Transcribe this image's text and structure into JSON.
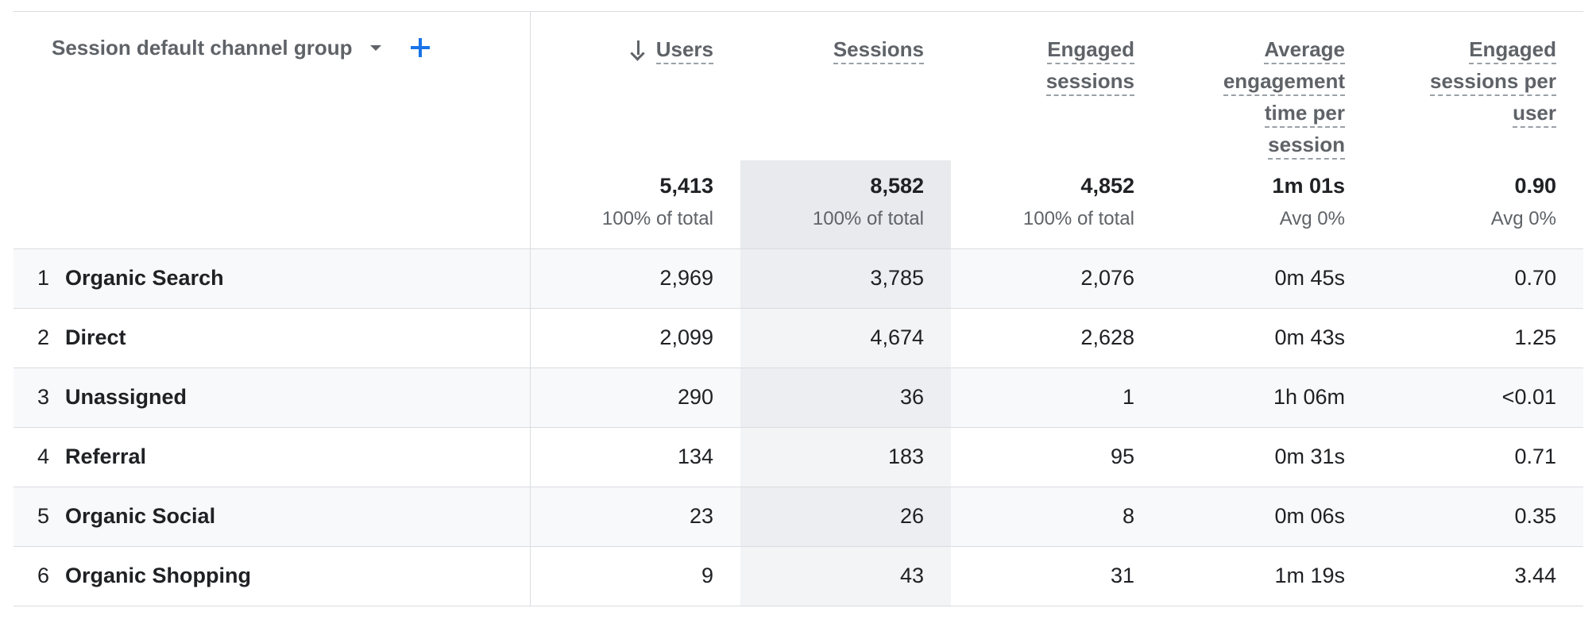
{
  "dimension": {
    "label": "Session default channel group"
  },
  "columns": [
    {
      "key": "users",
      "label": "Users",
      "sorted": true
    },
    {
      "key": "sessions",
      "label": "Sessions",
      "sorted": false
    },
    {
      "key": "engaged_sessions",
      "label": "Engaged sessions",
      "sorted": false
    },
    {
      "key": "avg_engagement_time",
      "label": "Average engagement time per session",
      "sorted": false
    },
    {
      "key": "engaged_sessions_per_user",
      "label": "Engaged sessions per user",
      "sorted": false
    }
  ],
  "header_lines": [
    [
      "Users"
    ],
    [
      "Sessions"
    ],
    [
      "Engaged",
      "sessions"
    ],
    [
      "Average",
      "engagement",
      "time per",
      "session"
    ],
    [
      "Engaged",
      "sessions per",
      "user"
    ]
  ],
  "totals": [
    {
      "value": "5,413",
      "sub": "100% of total"
    },
    {
      "value": "8,582",
      "sub": "100% of total"
    },
    {
      "value": "4,852",
      "sub": "100% of total"
    },
    {
      "value": "1m 01s",
      "sub": "Avg 0%"
    },
    {
      "value": "0.90",
      "sub": "Avg 0%"
    }
  ],
  "rows": [
    {
      "index": "1",
      "name": "Organic Search",
      "values": [
        "2,969",
        "3,785",
        "2,076",
        "0m 45s",
        "0.70"
      ]
    },
    {
      "index": "2",
      "name": "Direct",
      "values": [
        "2,099",
        "4,674",
        "2,628",
        "0m 43s",
        "1.25"
      ]
    },
    {
      "index": "3",
      "name": "Unassigned",
      "values": [
        "290",
        "36",
        "1",
        "1h 06m",
        "<0.01"
      ]
    },
    {
      "index": "4",
      "name": "Referral",
      "values": [
        "134",
        "183",
        "95",
        "0m 31s",
        "0.71"
      ]
    },
    {
      "index": "5",
      "name": "Organic Social",
      "values": [
        "23",
        "26",
        "8",
        "0m 06s",
        "0.35"
      ]
    },
    {
      "index": "6",
      "name": "Organic Shopping",
      "values": [
        "9",
        "43",
        "31",
        "1m 19s",
        "3.44"
      ]
    }
  ],
  "icons": {
    "sort": "arrow-down-icon",
    "dropdown": "caret-down-icon",
    "add": "plus-icon"
  },
  "colors": {
    "accent": "#1a73e8",
    "selected_column": "#e8eaed"
  }
}
